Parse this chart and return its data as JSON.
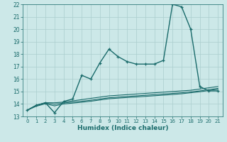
{
  "xlabel": "Humidex (Indice chaleur)",
  "ylabel": "",
  "xlim": [
    -0.5,
    21.5
  ],
  "ylim": [
    13,
    22
  ],
  "yticks": [
    13,
    14,
    15,
    16,
    17,
    18,
    19,
    20,
    21,
    22
  ],
  "xticks": [
    0,
    1,
    2,
    3,
    4,
    5,
    6,
    7,
    8,
    9,
    10,
    11,
    12,
    13,
    14,
    15,
    16,
    17,
    18,
    19,
    20,
    21
  ],
  "bg_color": "#cce8e8",
  "grid_color": "#aacece",
  "line_color": "#1a6b6b",
  "lines": [
    {
      "x": [
        0,
        1,
        2,
        3,
        4,
        5,
        6,
        7,
        8,
        9,
        10,
        11,
        12,
        13,
        14,
        15,
        16,
        17,
        18,
        19,
        20,
        21
      ],
      "y": [
        13.5,
        13.9,
        14.1,
        13.3,
        14.2,
        14.4,
        16.3,
        16.0,
        17.3,
        18.4,
        17.8,
        17.4,
        17.2,
        17.2,
        17.2,
        17.5,
        22.0,
        21.8,
        20.0,
        15.4,
        15.05,
        15.05
      ],
      "marker": true,
      "linewidth": 1.0
    },
    {
      "x": [
        0,
        1,
        2,
        3,
        4,
        5,
        6,
        7,
        8,
        9,
        10,
        11,
        12,
        13,
        14,
        15,
        16,
        17,
        18,
        19,
        20,
        21
      ],
      "y": [
        13.5,
        13.9,
        14.1,
        14.1,
        14.15,
        14.25,
        14.35,
        14.45,
        14.55,
        14.65,
        14.7,
        14.75,
        14.8,
        14.85,
        14.9,
        14.95,
        15.0,
        15.05,
        15.1,
        15.2,
        15.3,
        15.4
      ],
      "marker": false,
      "linewidth": 0.8
    },
    {
      "x": [
        0,
        1,
        2,
        3,
        4,
        5,
        6,
        7,
        8,
        9,
        10,
        11,
        12,
        13,
        14,
        15,
        16,
        17,
        18,
        19,
        20,
        21
      ],
      "y": [
        13.5,
        13.88,
        14.08,
        13.98,
        14.08,
        14.15,
        14.22,
        14.3,
        14.4,
        14.5,
        14.55,
        14.6,
        14.65,
        14.7,
        14.75,
        14.8,
        14.85,
        14.9,
        14.97,
        15.05,
        15.15,
        15.25
      ],
      "marker": false,
      "linewidth": 0.8
    },
    {
      "x": [
        0,
        1,
        2,
        3,
        4,
        5,
        6,
        7,
        8,
        9,
        10,
        11,
        12,
        13,
        14,
        15,
        16,
        17,
        18,
        19,
        20,
        21
      ],
      "y": [
        13.5,
        13.82,
        14.02,
        13.85,
        14.0,
        14.07,
        14.14,
        14.22,
        14.32,
        14.42,
        14.47,
        14.52,
        14.56,
        14.61,
        14.66,
        14.71,
        14.76,
        14.82,
        14.9,
        14.98,
        15.08,
        15.18
      ],
      "marker": false,
      "linewidth": 0.8
    }
  ]
}
